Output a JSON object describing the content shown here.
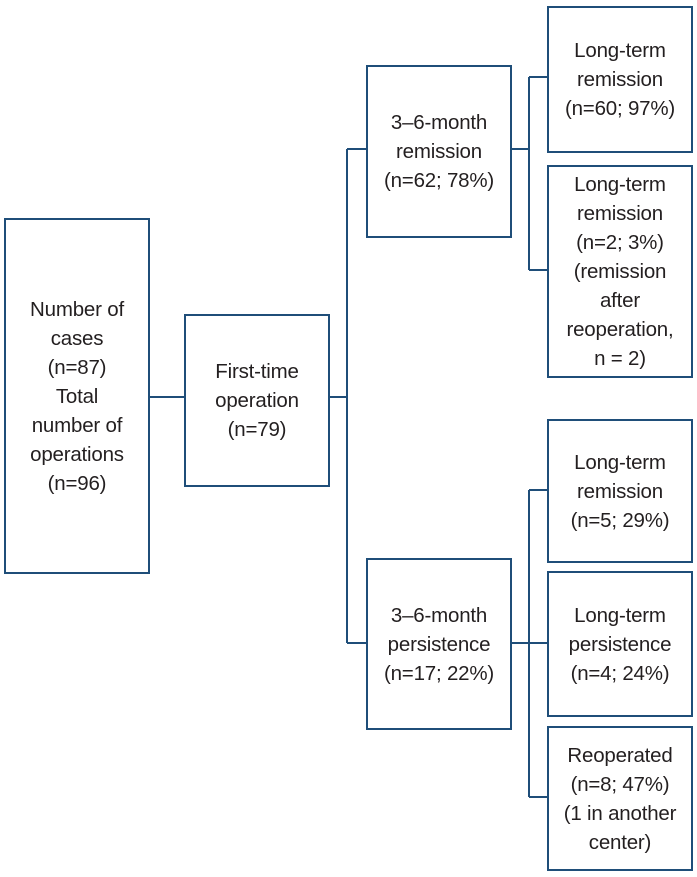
{
  "nodes": {
    "root": {
      "lines": [
        "Number of",
        "cases",
        "(n=87)",
        "Total",
        "number of",
        "operations",
        "(n=96)"
      ]
    },
    "first_op": {
      "lines": [
        "First-time",
        "operation",
        "(n=79)"
      ]
    },
    "remission_3_6": {
      "lines": [
        "3–6-month",
        "remission",
        "(n=62; 78%)"
      ]
    },
    "persistence_3_6": {
      "lines": [
        "3–6-month",
        "persistence",
        "(n=17; 22%)"
      ]
    },
    "lt_remission_a": {
      "lines": [
        "Long-term",
        "remission",
        "(n=60; 97%)"
      ]
    },
    "lt_remission_b": {
      "lines": [
        "Long-term",
        "remission",
        "(n=2; 3%)",
        "(remission",
        "after",
        "reoperation,",
        "n = 2)"
      ]
    },
    "lt_remission_c": {
      "lines": [
        "Long-term",
        "remission",
        "(n=5; 29%)"
      ]
    },
    "lt_persistence": {
      "lines": [
        "Long-term",
        "persistence",
        "(n=4; 24%)"
      ]
    },
    "reoperated": {
      "lines": [
        "Reoperated",
        "(n=8; 47%)",
        "(1 in another",
        "center)"
      ]
    }
  },
  "colors": {
    "border": "#1f4e79",
    "text": "#231f20",
    "background": "#ffffff"
  }
}
